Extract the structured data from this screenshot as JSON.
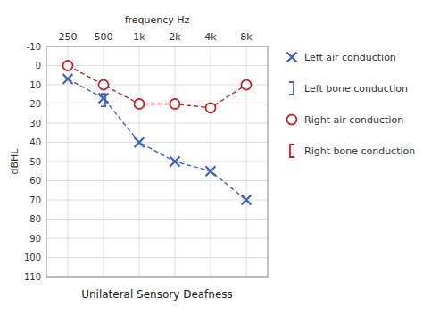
{
  "chart_data": {
    "type": "line",
    "title": "Unilateral Sensory Deafness",
    "x_label": "frequency Hz",
    "y_label": "dBHL",
    "categories": [
      "250",
      "500",
      "1k",
      "2k",
      "4k",
      "8k"
    ],
    "series": [
      {
        "name": "Left air conduction",
        "color": "#3a5fcd",
        "marker": "x",
        "line_style": "dashed",
        "type": "line",
        "values": [
          7,
          17,
          40,
          50,
          55,
          70
        ]
      },
      {
        "name": "Left bone conduction",
        "color": "#3a5fcd",
        "marker": "right-bracket",
        "type": "scatter",
        "values": [
          null,
          18,
          null,
          null,
          null,
          null
        ]
      },
      {
        "name": "Right air conduction",
        "color": "#cc2222",
        "marker": "circle",
        "line_style": "dashed",
        "type": "line",
        "values": [
          0,
          10,
          20,
          20,
          22,
          10
        ]
      },
      {
        "name": "Right bone conduction",
        "color": "#cc2222",
        "marker": "left-bracket",
        "type": "scatter",
        "values": [
          null,
          null,
          null,
          null,
          null,
          null
        ]
      }
    ],
    "ylim": [
      110,
      -10
    ],
    "yticks": [
      -10,
      0,
      10,
      20,
      30,
      40,
      50,
      60,
      70,
      80,
      90,
      100,
      110
    ],
    "grid": true,
    "legend": "right"
  }
}
